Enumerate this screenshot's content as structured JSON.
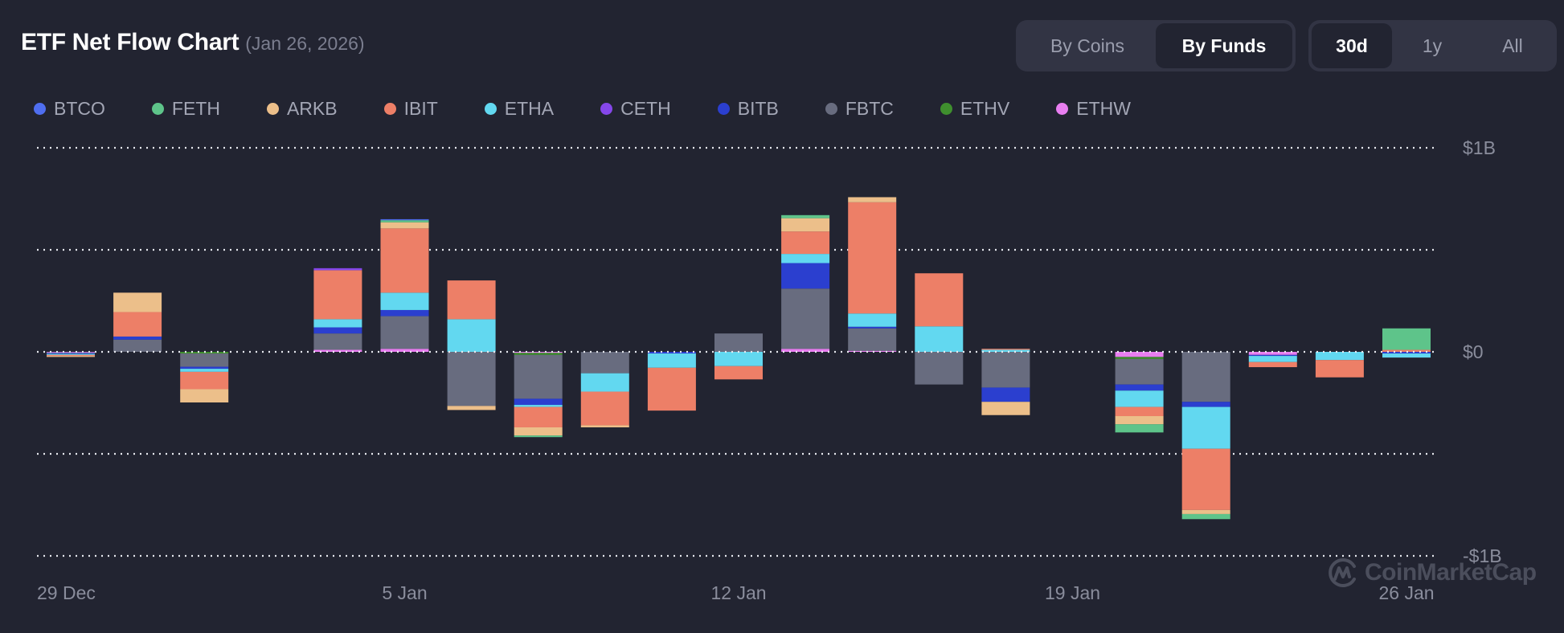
{
  "header": {
    "title": "ETF Net Flow Chart",
    "date": "(Jan 26, 2026)"
  },
  "mode_toggle": [
    {
      "label": "By Coins",
      "active": false
    },
    {
      "label": "By Funds",
      "active": true
    }
  ],
  "range_toggle": [
    {
      "label": "30d",
      "active": true
    },
    {
      "label": "1y",
      "active": false
    },
    {
      "label": "All",
      "active": false
    }
  ],
  "watermark": "CoinMarketCap",
  "chart_data": {
    "type": "bar",
    "stacked": true,
    "title": "ETF Net Flow Chart",
    "xlabel": "",
    "ylabel": "",
    "ylim": [
      -1.0,
      1.0
    ],
    "y_unit": "USD billions",
    "y_ticks": [
      {
        "value": 1.0,
        "label": "$1B"
      },
      {
        "value": 0.5,
        "label": ""
      },
      {
        "value": 0.0,
        "label": "$0"
      },
      {
        "value": -0.5,
        "label": ""
      },
      {
        "value": -1.0,
        "label": "-$1B"
      }
    ],
    "grid": true,
    "legend_position": "top-left",
    "categories": [
      "Dec 29",
      "Dec 30",
      "Dec 31",
      "Jan 1",
      "Jan 2",
      "Jan 5",
      "Jan 6",
      "Jan 7",
      "Jan 8",
      "Jan 9",
      "Jan 12",
      "Jan 13",
      "Jan 14",
      "Jan 15",
      "Jan 16",
      "Jan 19",
      "Jan 20",
      "Jan 21",
      "Jan 22",
      "Jan 23",
      "Jan 26"
    ],
    "x_tick_labels": [
      {
        "index": 0,
        "label": "29 Dec"
      },
      {
        "index": 5,
        "label": "5 Jan"
      },
      {
        "index": 10,
        "label": "12 Jan"
      },
      {
        "index": 15,
        "label": "19 Jan"
      },
      {
        "index": 20,
        "label": "26 Jan"
      }
    ],
    "series": [
      {
        "name": "ETHW",
        "color": "#e87ef0",
        "values": [
          -0.003,
          0,
          0,
          0,
          0.01,
          0.015,
          0,
          -0.005,
          0,
          0,
          0,
          0.015,
          0.005,
          0,
          0,
          0,
          -0.025,
          0,
          -0.015,
          0,
          0
        ]
      },
      {
        "name": "ETHV",
        "color": "#3f8f2e",
        "values": [
          0,
          0,
          -0.008,
          0,
          0,
          0,
          0,
          -0.01,
          0,
          0,
          0,
          0,
          0,
          0,
          0,
          0,
          -0.01,
          0,
          0,
          0,
          0
        ]
      },
      {
        "name": "FBTC",
        "color": "#686c7f",
        "values": [
          -0.003,
          0.06,
          -0.065,
          0,
          0.08,
          0.16,
          -0.265,
          -0.215,
          -0.105,
          0,
          0.09,
          0.295,
          0.11,
          -0.16,
          -0.175,
          0,
          -0.125,
          -0.245,
          0,
          0,
          0
        ]
      },
      {
        "name": "BITB",
        "color": "#2b3fcf",
        "values": [
          -0.004,
          0.015,
          -0.01,
          0,
          0.03,
          0.03,
          0,
          -0.03,
          0,
          -0.008,
          0,
          0.125,
          0.008,
          0,
          -0.07,
          0,
          -0.03,
          -0.025,
          -0.005,
          0,
          -0.008
        ]
      },
      {
        "name": "ETHA",
        "color": "#62d8f0",
        "values": [
          -0.005,
          0,
          -0.015,
          0,
          0.04,
          0.085,
          0.16,
          -0.01,
          -0.09,
          -0.07,
          -0.07,
          0.045,
          0.065,
          0.125,
          0.01,
          0,
          -0.08,
          -0.205,
          -0.03,
          -0.04,
          -0.02
        ]
      },
      {
        "name": "IBIT",
        "color": "#ed7f67",
        "values": [
          -0.005,
          0.12,
          -0.085,
          0,
          0.24,
          0.315,
          0.19,
          -0.1,
          -0.165,
          -0.21,
          -0.065,
          0.11,
          0.545,
          0.26,
          0.005,
          0,
          -0.045,
          -0.3,
          -0.025,
          -0.085,
          0.01
        ]
      },
      {
        "name": "ARKB",
        "color": "#ecbf8a",
        "values": [
          -0.005,
          0.095,
          -0.065,
          0,
          0,
          0.03,
          -0.02,
          -0.04,
          -0.01,
          0,
          0,
          0.065,
          0.025,
          0,
          -0.065,
          0,
          -0.04,
          -0.02,
          0,
          0,
          0
        ]
      },
      {
        "name": "CETH",
        "color": "#8547ea",
        "values": [
          0,
          0,
          0,
          0,
          0.01,
          0,
          0,
          0,
          0,
          0,
          0,
          0,
          0,
          0,
          0,
          0,
          0,
          0,
          0,
          0,
          0
        ]
      },
      {
        "name": "FETH",
        "color": "#5ec48a",
        "values": [
          0,
          0,
          0,
          0,
          0,
          0.01,
          0,
          -0.008,
          0,
          0,
          0,
          0.015,
          0,
          0,
          0,
          0,
          -0.04,
          -0.025,
          0,
          0,
          0.105
        ]
      },
      {
        "name": "BTCO",
        "color": "#4f6ef0",
        "values": [
          0,
          0,
          0,
          0,
          0,
          0.005,
          0,
          0,
          0,
          0,
          0,
          0,
          0,
          0,
          0,
          0,
          0,
          0,
          0,
          0,
          0
        ]
      }
    ],
    "legend": [
      "BTCO",
      "FETH",
      "ARKB",
      "IBIT",
      "ETHA",
      "CETH",
      "BITB",
      "FBTC",
      "ETHV",
      "ETHW"
    ]
  }
}
